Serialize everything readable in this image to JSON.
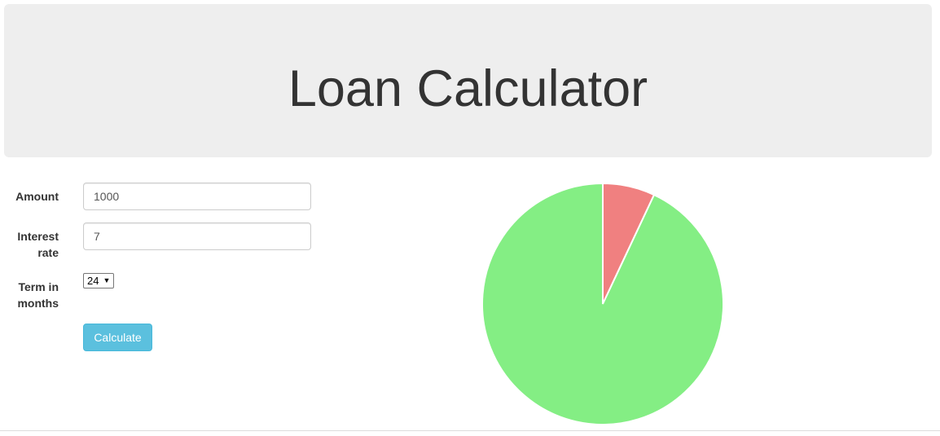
{
  "header": {
    "title": "Loan Calculator"
  },
  "form": {
    "amount": {
      "label": "Amount",
      "value": "1000"
    },
    "interest": {
      "label_line1": "Interest",
      "label_line2": "rate",
      "value": "7"
    },
    "term": {
      "label_line1": "Term in",
      "label_line2": "months",
      "selected": "24"
    },
    "calculate_label": "Calculate"
  },
  "chart_data": {
    "type": "pie",
    "slices": [
      {
        "label": "",
        "value": 7,
        "color": "#f08080"
      },
      {
        "label": "",
        "value": 93,
        "color": "#84ee84"
      }
    ]
  },
  "colors": {
    "header_bg": "#eeeeee",
    "button_bg": "#5bc0de"
  }
}
